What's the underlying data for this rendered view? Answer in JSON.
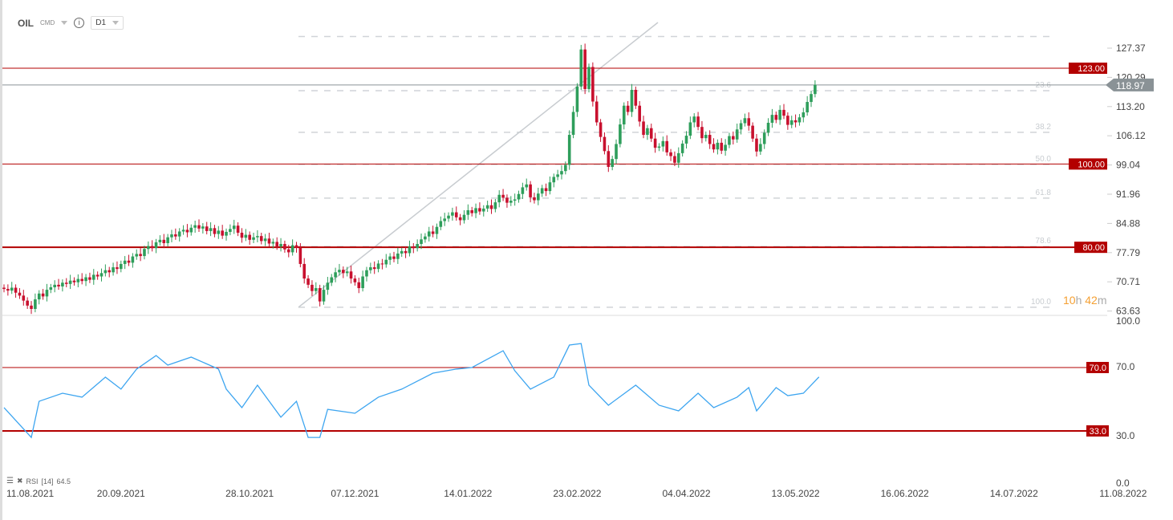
{
  "header": {
    "symbol": "OIL",
    "category": "CMD",
    "info_icon": "info-icon",
    "timeframe": "D1"
  },
  "colors": {
    "up": "#2e9e5b",
    "down": "#c8102e",
    "level": "#b30000",
    "fib": "#d0d4d8",
    "price": "#8a9296",
    "rsi": "#3da5f0",
    "countdown": "#f5a033"
  },
  "countdown": {
    "hours": "10",
    "h": "h",
    "minutes": "42",
    "m": "m"
  },
  "current_price": "118.97",
  "price_axis": [
    "127.37",
    "120.29",
    "113.20",
    "106.12",
    "99.04",
    "91.96",
    "84.88",
    "77.79",
    "70.71",
    "63.63"
  ],
  "levels": [
    {
      "value": 123,
      "label": "123.00"
    },
    {
      "value": 100,
      "label": "100.00"
    },
    {
      "value": 80,
      "label": "80.00"
    }
  ],
  "fib_levels": [
    {
      "ratio": "0",
      "value": 130.6
    },
    {
      "ratio": "23.6",
      "value": 117.6
    },
    {
      "ratio": "38.2",
      "value": 107.6
    },
    {
      "ratio": "50.0",
      "value": 99.9
    },
    {
      "ratio": "61.8",
      "value": 91.8
    },
    {
      "ratio": "78.6",
      "value": 80.2
    },
    {
      "ratio": "100.0",
      "value": 65.6
    }
  ],
  "rsi_axis": [
    "100.0",
    "70.0",
    "30.0",
    "0.0"
  ],
  "rsi_levels": [
    {
      "value": 70,
      "label": "70.0"
    },
    {
      "value": 33,
      "label": "33.0"
    }
  ],
  "rsi_legend": {
    "name": "RSI",
    "period": "[14]",
    "value": "64.5"
  },
  "x_axis": [
    {
      "index": 1,
      "label": "11.08.2021"
    },
    {
      "index": 30,
      "label": "20.09.2021"
    },
    {
      "index": 63,
      "label": "28.10.2021"
    },
    {
      "index": 90,
      "label": "07.12.2021"
    },
    {
      "index": 119,
      "label": "14.01.2022"
    },
    {
      "index": 147,
      "label": "23.02.2022"
    },
    {
      "index": 175,
      "label": "04.04.2022"
    },
    {
      "index": 203,
      "label": "13.05.2022"
    },
    {
      "index": 231,
      "label": "16.06.2022"
    },
    {
      "index": 259,
      "label": "14.07.2022"
    },
    {
      "index": 287,
      "label": "11.08.2022"
    }
  ],
  "chart_data": {
    "type": "candlestick",
    "symbol": "OIL",
    "ylim": [
      63.63,
      130.6
    ],
    "closes": [
      70.0,
      69.6,
      70.3,
      69.1,
      68.4,
      67.2,
      66.0,
      65.2,
      67.5,
      68.9,
      68.2,
      69.8,
      70.4,
      71.0,
      70.6,
      71.5,
      71.2,
      72.0,
      71.6,
      72.4,
      71.9,
      72.8,
      72.2,
      73.4,
      73.0,
      73.8,
      74.5,
      74.0,
      75.2,
      74.8,
      76.0,
      76.8,
      76.3,
      77.8,
      78.4,
      77.9,
      79.6,
      80.3,
      79.8,
      81.2,
      81.8,
      81.0,
      82.4,
      83.1,
      82.6,
      83.8,
      84.2,
      83.6,
      84.7,
      85.3,
      84.5,
      85.0,
      83.9,
      84.6,
      83.2,
      84.0,
      82.8,
      83.7,
      84.4,
      85.2,
      83.5,
      82.3,
      83.0,
      81.8,
      82.4,
      82.7,
      81.5,
      82.1,
      80.9,
      81.3,
      80.2,
      80.8,
      79.5,
      78.8,
      80.5,
      79.9,
      76.0,
      72.5,
      71.0,
      69.5,
      70.2,
      67.0,
      69.8,
      71.5,
      72.8,
      74.0,
      74.6,
      73.8,
      74.2,
      72.5,
      71.6,
      70.2,
      73.0,
      74.5,
      75.2,
      74.8,
      76.1,
      75.9,
      77.0,
      77.8,
      77.2,
      78.5,
      79.1,
      78.6,
      80.2,
      79.8,
      80.8,
      81.9,
      82.6,
      83.8,
      83.2,
      84.9,
      86.3,
      86.9,
      87.6,
      88.4,
      87.2,
      86.5,
      87.8,
      88.9,
      88.2,
      89.4,
      88.6,
      89.3,
      90.1,
      89.2,
      90.8,
      92.6,
      91.9,
      90.7,
      91.2,
      91.5,
      92.8,
      94.4,
      95.1,
      92.0,
      91.3,
      92.9,
      94.2,
      93.5,
      95.6,
      96.9,
      97.5,
      98.3,
      99.8,
      107.0,
      112.5,
      118.6,
      127.5,
      118.0,
      123.3,
      115.0,
      110.0,
      106.5,
      103.1,
      99.3,
      101.2,
      104.8,
      109.5,
      114.0,
      112.5,
      117.8,
      114.0,
      110.2,
      107.0,
      108.6,
      106.1,
      103.9,
      104.2,
      105.5,
      102.8,
      101.9,
      100.3,
      102.6,
      104.9,
      106.8,
      110.0,
      111.4,
      108.9,
      106.2,
      107.0,
      104.8,
      103.5,
      105.1,
      103.2,
      104.6,
      106.7,
      105.9,
      108.3,
      109.8,
      111.0,
      109.2,
      106.1,
      103.0,
      104.8,
      107.5,
      109.9,
      111.8,
      110.6,
      113.0,
      111.6,
      109.4,
      110.5,
      110.0,
      111.2,
      112.4,
      114.9,
      116.8,
      119.0
    ],
    "rsi": {
      "ylim": [
        0,
        100
      ],
      "points": [
        [
          0,
          46.6
        ],
        [
          7,
          29.2
        ],
        [
          9,
          50.3
        ],
        [
          15,
          55
        ],
        [
          20,
          52.7
        ],
        [
          26,
          64.4
        ],
        [
          30,
          57.4
        ],
        [
          34,
          69.1
        ],
        [
          39,
          77
        ],
        [
          42,
          71.4
        ],
        [
          48,
          76.1
        ],
        [
          55,
          69.1
        ],
        [
          57,
          57.4
        ],
        [
          61,
          46.6
        ],
        [
          65,
          59.7
        ],
        [
          71,
          41
        ],
        [
          75,
          50.3
        ],
        [
          78,
          29.2
        ],
        [
          81,
          29.2
        ],
        [
          83,
          45.6
        ],
        [
          90,
          43.3
        ],
        [
          96,
          52.7
        ],
        [
          102,
          57.4
        ],
        [
          110,
          66.7
        ],
        [
          116,
          69.1
        ],
        [
          120,
          70
        ],
        [
          128,
          79.8
        ],
        [
          131,
          68.1
        ],
        [
          135,
          57.4
        ],
        [
          141,
          64.4
        ],
        [
          145,
          83.1
        ],
        [
          148,
          84
        ],
        [
          150,
          59.7
        ],
        [
          155,
          48
        ],
        [
          162,
          59.7
        ],
        [
          168,
          48
        ],
        [
          173,
          44.7
        ],
        [
          178,
          55
        ],
        [
          182,
          46.6
        ],
        [
          188,
          52.7
        ],
        [
          191,
          58.3
        ],
        [
          193,
          44.7
        ],
        [
          198,
          58.3
        ],
        [
          201,
          53.6
        ],
        [
          205,
          55
        ],
        [
          209,
          64.5
        ]
      ]
    }
  }
}
